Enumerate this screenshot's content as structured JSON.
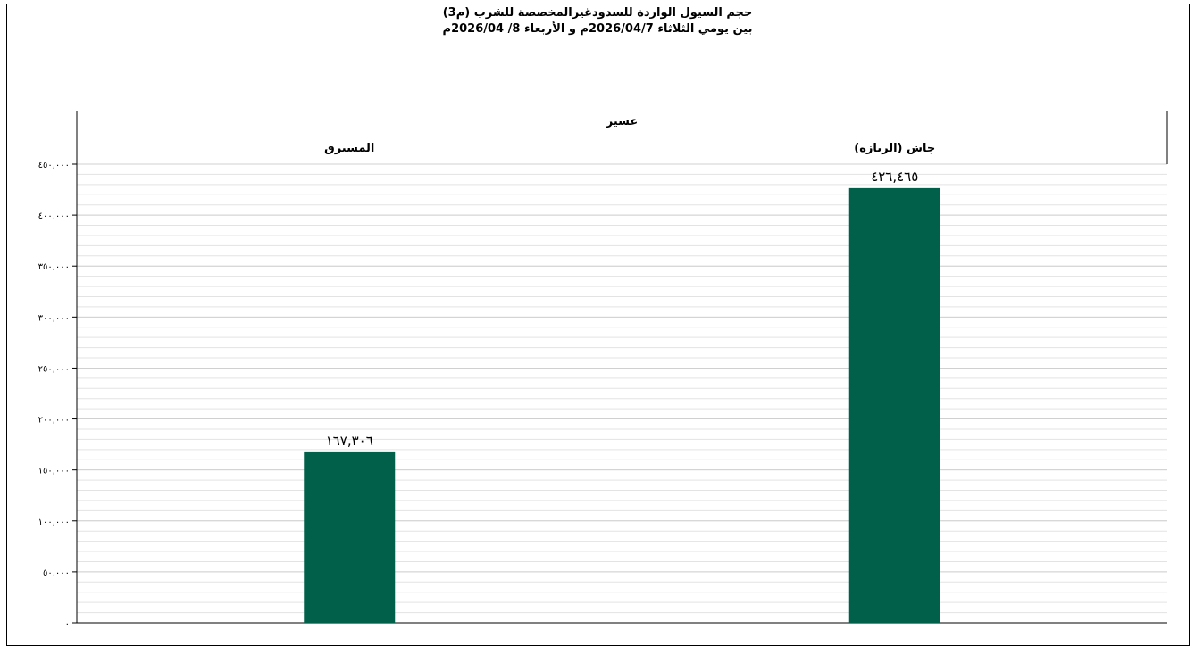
{
  "chart_data": {
    "type": "bar",
    "title_line1": "حجم السيول الواردة للسدودغيرالمخصصة للشرب (م3)",
    "title_line2": "بين يومي الثلاثاء 2026/04/7م و الأربعاء 8/ 2026/04م",
    "group_label": "عسير",
    "categories": [
      "المسيرق",
      "جاش (الريازه)"
    ],
    "values": [
      167306,
      426465
    ],
    "value_labels": [
      "١٦٧,٣٠٦",
      "٤٢٦,٤٦٥"
    ],
    "ylim": [
      0,
      450000
    ],
    "yticks": [
      0,
      50000,
      100000,
      150000,
      200000,
      250000,
      300000,
      350000,
      400000,
      450000
    ],
    "ytick_labels": [
      "٠",
      "٥٠,٠٠٠",
      "١٠٠,٠٠٠",
      "١٥٠,٠٠٠",
      "٢٠٠,٠٠٠",
      "٢٥٠,٠٠٠",
      "٣٠٠,٠٠٠",
      "٣٥٠,٠٠٠",
      "٤٠٠,٠٠٠",
      "٤٥٠,٠٠٠"
    ],
    "bar_color": "#00604a",
    "grid": true
  }
}
